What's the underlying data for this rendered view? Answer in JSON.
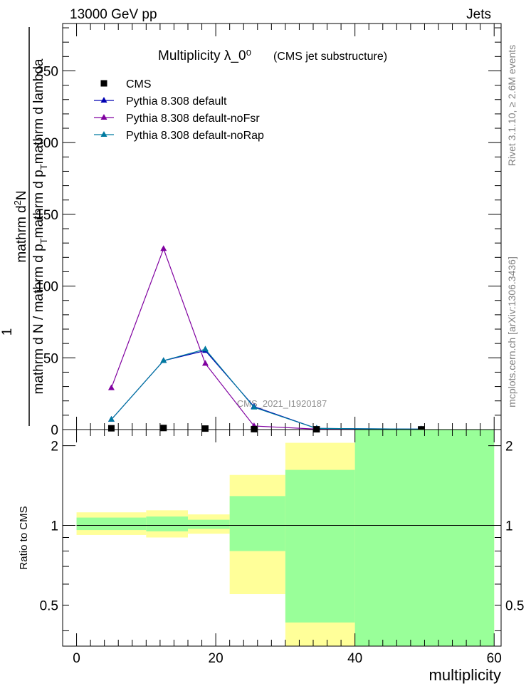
{
  "header": {
    "left": "13000 GeV pp",
    "right": "Jets"
  },
  "title": {
    "main": "Multiplicity  λ_0⁰",
    "sub": "(CMS jet substructure)"
  },
  "watermark": "CMS_2021_I1920187",
  "side_text": {
    "rivet": "Rivet 3.1.10, ≥ 2.6M events",
    "site": "mcplots.cern.ch [arXiv:1306.3436]"
  },
  "colors": {
    "cms": "#000000",
    "default": "#0000b2",
    "noFsr": "#8000a0",
    "noRap": "#007aa0",
    "band_inner": "#99ff99",
    "band_outer": "#ffff99"
  },
  "chart_data": [
    {
      "type": "line",
      "title": "Multiplicity  λ_0⁰ (CMS jet substructure)",
      "ylabel": "1 / mathrm d N / mathrm d p_T mathrm d²N / mathrm d p_T mathrm d lambda",
      "ylabel_parts": {
        "numerator": "mathrm d²N",
        "numerator_main": "mathrm d",
        "numerator_sup": "2",
        "numerator_tail": "N",
        "one": "1",
        "denominator": "mathrm d N / mathrm d p_T mathrm d p_T mathrm d lambda",
        "denominator_main": "mathrm d N / mathrm d p",
        "denominator_sub": "T",
        "denominator_tail": "mathrm d p",
        "denominator_sub2": "T",
        "denominator_end": "mathrm d lambda"
      },
      "xlim": [
        -2,
        61
      ],
      "ylim": [
        0,
        283
      ],
      "yticks": [
        0,
        50,
        100,
        150,
        200,
        250
      ],
      "legend_position": "top-left",
      "series": [
        {
          "name": "CMS",
          "marker": "square",
          "x": [
            5,
            12.5,
            18.5,
            25.5,
            34.5,
            49.5
          ],
          "y": [
            0.9,
            1.1,
            0.7,
            0.3,
            0.2,
            0.15
          ]
        },
        {
          "name": "Pythia 8.308 default",
          "marker": "triangle",
          "x": [
            5,
            12.5,
            18.5,
            25.5,
            34.5,
            49.5
          ],
          "y": [
            7.0,
            48.0,
            55.0,
            16.0,
            0.8,
            0.3
          ]
        },
        {
          "name": "Pythia 8.308 default-noFsr",
          "marker": "triangle",
          "x": [
            5,
            12.5,
            18.5,
            25.5,
            34.5,
            49.5
          ],
          "y": [
            29.0,
            126.0,
            46.0,
            2.5,
            0.3,
            0.1
          ]
        },
        {
          "name": "Pythia 8.308 default-noRap",
          "marker": "triangle",
          "x": [
            5,
            12.5,
            18.5,
            25.5,
            34.5,
            49.5
          ],
          "y": [
            7.0,
            48.0,
            56.0,
            15.5,
            0.8,
            0.3
          ]
        }
      ]
    },
    {
      "type": "area",
      "xlabel": "multiplicity",
      "ylabel": "Ratio to CMS",
      "xlim": [
        -2,
        61
      ],
      "ylim": [
        0.35,
        2.3
      ],
      "xticks": [
        0,
        20,
        40,
        60
      ],
      "yticks": [
        0.5,
        1,
        2
      ],
      "reference_line": 1,
      "bins": [
        {
          "x0": 0,
          "x1": 10,
          "inner": [
            0.96,
            1.07
          ],
          "outer": [
            0.92,
            1.12
          ]
        },
        {
          "x0": 10,
          "x1": 16,
          "inner": [
            0.95,
            1.08
          ],
          "outer": [
            0.9,
            1.14
          ]
        },
        {
          "x0": 16,
          "x1": 22,
          "inner": [
            0.97,
            1.05
          ],
          "outer": [
            0.93,
            1.1
          ]
        },
        {
          "x0": 22,
          "x1": 30,
          "inner": [
            0.8,
            1.29
          ],
          "outer": [
            0.55,
            1.55
          ]
        },
        {
          "x0": 30,
          "x1": 40,
          "inner": [
            0.43,
            1.62
          ],
          "outer": [
            0.3,
            2.05
          ]
        },
        {
          "x0": 40,
          "x1": 60,
          "inner": [
            0.2,
            2.5
          ],
          "outer": [
            0.2,
            2.5
          ]
        }
      ]
    }
  ]
}
